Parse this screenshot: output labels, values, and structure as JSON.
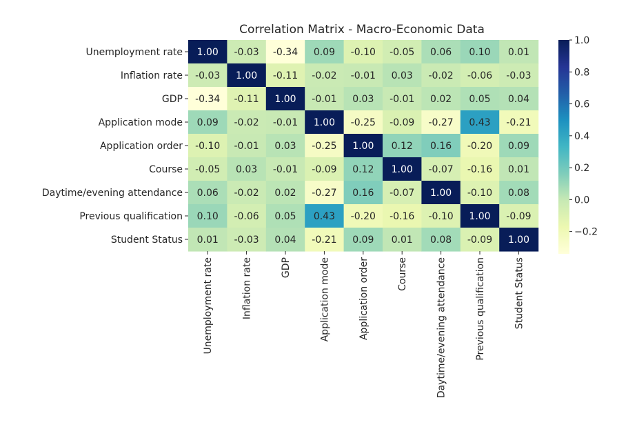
{
  "chart_data": {
    "type": "heatmap",
    "title": "Correlation Matrix - Macro-Economic Data",
    "xlabel": "",
    "ylabel": "",
    "labels": [
      "Unemployment rate",
      "Inflation rate",
      "GDP",
      "Application mode",
      "Application order",
      "Course",
      "Daytime/evening attendance",
      "Previous qualification",
      "Student Status"
    ],
    "matrix": [
      [
        1.0,
        -0.03,
        -0.34,
        0.09,
        -0.1,
        -0.05,
        0.06,
        0.1,
        0.01
      ],
      [
        -0.03,
        1.0,
        -0.11,
        -0.02,
        -0.01,
        0.03,
        -0.02,
        -0.06,
        -0.03
      ],
      [
        -0.34,
        -0.11,
        1.0,
        -0.01,
        0.03,
        -0.01,
        0.02,
        0.05,
        0.04
      ],
      [
        0.09,
        -0.02,
        -0.01,
        1.0,
        -0.25,
        -0.09,
        -0.27,
        0.43,
        -0.21
      ],
      [
        -0.1,
        -0.01,
        0.03,
        -0.25,
        1.0,
        0.12,
        0.16,
        -0.2,
        0.09
      ],
      [
        -0.05,
        0.03,
        -0.01,
        -0.09,
        0.12,
        1.0,
        -0.07,
        -0.16,
        0.01
      ],
      [
        0.06,
        -0.02,
        0.02,
        -0.27,
        0.16,
        -0.07,
        1.0,
        -0.1,
        0.08
      ],
      [
        0.1,
        -0.06,
        0.05,
        0.43,
        -0.2,
        -0.16,
        -0.1,
        1.0,
        -0.09
      ],
      [
        0.01,
        -0.03,
        0.04,
        -0.21,
        0.09,
        0.01,
        0.08,
        -0.09,
        1.0
      ]
    ],
    "value_format": "2 decimals",
    "colormap": "YlGnBu",
    "color_range": [
      -0.34,
      1.0
    ],
    "colorbar_ticks": [
      "1.0",
      "0.8",
      "0.6",
      "0.4",
      "0.2",
      "0.0",
      "−0.2"
    ],
    "colorbar_tick_values": [
      1.0,
      0.8,
      0.6,
      0.4,
      0.2,
      0.0,
      -0.2
    ],
    "legend": "colorbar right"
  }
}
